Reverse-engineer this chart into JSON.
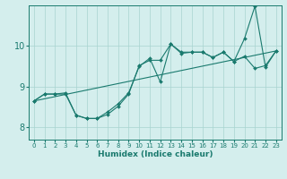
{
  "xlabel": "Humidex (Indice chaleur)",
  "ylabel": "",
  "xlim": [
    -0.5,
    23.5
  ],
  "ylim": [
    7.7,
    11.0
  ],
  "yticks": [
    8,
    9,
    10
  ],
  "xticks": [
    0,
    1,
    2,
    3,
    4,
    5,
    6,
    7,
    8,
    9,
    10,
    11,
    12,
    13,
    14,
    15,
    16,
    17,
    18,
    19,
    20,
    21,
    22,
    23
  ],
  "bg_color": "#d4eeed",
  "grid_color": "#a8d4d0",
  "line_color": "#1a7a6e",
  "line1_x": [
    0,
    1,
    2,
    3,
    4,
    5,
    6,
    7,
    8,
    9,
    10,
    11,
    12,
    13,
    14,
    15,
    16,
    17,
    18,
    19,
    20,
    21,
    22,
    23
  ],
  "line1_y": [
    8.65,
    8.82,
    8.82,
    8.82,
    8.3,
    8.22,
    8.22,
    8.32,
    8.52,
    8.82,
    9.52,
    9.65,
    9.65,
    10.05,
    9.85,
    9.85,
    9.85,
    9.72,
    9.85,
    9.62,
    9.75,
    9.45,
    9.52,
    9.88
  ],
  "line2_x": [
    0,
    23
  ],
  "line2_y": [
    8.65,
    9.88
  ],
  "line3_x": [
    0,
    1,
    2,
    3,
    4,
    5,
    6,
    7,
    8,
    9,
    10,
    11,
    12,
    13,
    14,
    15,
    16,
    17,
    18,
    19,
    20,
    21,
    22,
    23
  ],
  "line3_y": [
    8.65,
    8.82,
    8.82,
    8.85,
    8.3,
    8.22,
    8.22,
    8.38,
    8.58,
    8.85,
    9.5,
    9.7,
    9.12,
    10.05,
    9.82,
    9.85,
    9.85,
    9.72,
    9.85,
    9.62,
    10.18,
    10.98,
    9.48,
    9.88
  ],
  "marker_size": 2.0,
  "line_width": 0.8
}
